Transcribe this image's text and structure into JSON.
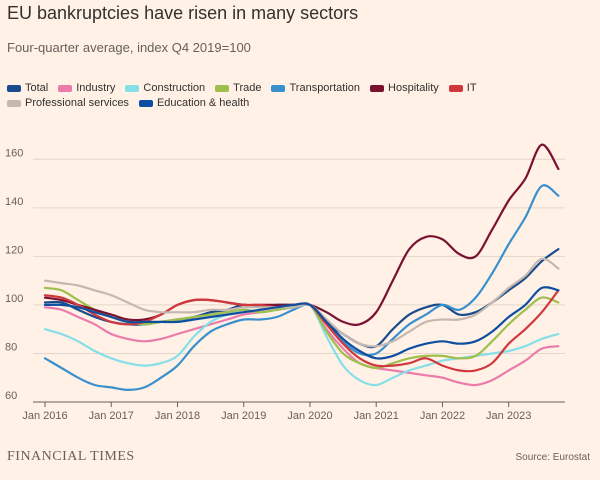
{
  "header": {
    "title": "EU bankruptcies have risen in many sectors",
    "subtitle": "Four-quarter average, index Q4 2019=100"
  },
  "footer": {
    "brand": "FINANCIAL TIMES",
    "source": "Source: Eurostat"
  },
  "chart_data": {
    "type": "line",
    "title": "EU bankruptcies have risen in many sectors",
    "subtitle": "Four-quarter average, index Q4 2019=100",
    "xlabel": "",
    "ylabel": "",
    "x": [
      2016.0,
      2016.25,
      2016.5,
      2016.75,
      2017.0,
      2017.25,
      2017.5,
      2017.75,
      2018.0,
      2018.25,
      2018.5,
      2018.75,
      2019.0,
      2019.25,
      2019.5,
      2019.75,
      2020.0,
      2020.25,
      2020.5,
      2020.75,
      2021.0,
      2021.25,
      2021.5,
      2021.75,
      2022.0,
      2022.25,
      2022.5,
      2022.75,
      2023.0,
      2023.25,
      2023.5,
      2023.75
    ],
    "xlim": [
      2016.0,
      2023.85
    ],
    "ylim": [
      60,
      170
    ],
    "x_ticks": [
      {
        "value": 2016,
        "label": "Jan 2016"
      },
      {
        "value": 2017,
        "label": "Jan 2017"
      },
      {
        "value": 2018,
        "label": "Jan 2018"
      },
      {
        "value": 2019,
        "label": "Jan 2019"
      },
      {
        "value": 2020,
        "label": "Jan 2020"
      },
      {
        "value": 2021,
        "label": "Jan 2021"
      },
      {
        "value": 2022,
        "label": "Jan 2022"
      },
      {
        "value": 2023,
        "label": "Jan 2023"
      }
    ],
    "y_ticks": [
      60,
      80,
      100,
      120,
      140,
      160
    ],
    "grid": "horizontal",
    "legend_position": "top-left",
    "series": [
      {
        "name": "Total",
        "color": "#1a4b8c",
        "values": [
          101,
          101,
          98,
          95,
          93,
          92,
          92,
          93,
          94,
          95,
          97,
          98,
          100,
          99,
          100,
          100,
          100,
          93,
          88,
          84,
          83,
          90,
          96,
          99,
          100,
          96,
          97,
          101,
          106,
          111,
          118,
          123
        ]
      },
      {
        "name": "Industry",
        "color": "#ea7bab",
        "values": [
          99,
          98,
          95,
          92,
          88,
          86,
          85,
          86,
          88,
          90,
          92,
          94,
          96,
          97,
          98,
          99,
          100,
          90,
          82,
          76,
          74,
          73,
          72,
          71,
          70,
          68,
          67,
          69,
          73,
          77,
          82,
          83
        ]
      },
      {
        "name": "Construction",
        "color": "#86dfe8",
        "values": [
          90,
          88,
          85,
          81,
          78,
          76,
          75,
          76,
          79,
          87,
          93,
          96,
          98,
          97,
          98,
          99,
          100,
          87,
          75,
          69,
          67,
          70,
          73,
          75,
          77,
          78,
          79,
          80,
          81,
          83,
          86,
          88
        ]
      },
      {
        "name": "Trade",
        "color": "#9ebf4b",
        "values": [
          107,
          106,
          102,
          98,
          95,
          93,
          92,
          93,
          94,
          95,
          96,
          97,
          98,
          97,
          98,
          99,
          100,
          89,
          80,
          76,
          74,
          76,
          78,
          79,
          79,
          78,
          79,
          85,
          92,
          98,
          103,
          101
        ]
      },
      {
        "name": "Transportation",
        "color": "#3a8fce",
        "values": [
          78,
          74,
          70,
          67,
          66,
          65,
          66,
          70,
          75,
          83,
          89,
          92,
          94,
          94,
          95,
          98,
          100,
          93,
          85,
          80,
          80,
          86,
          92,
          96,
          100,
          98,
          103,
          113,
          125,
          136,
          149,
          145
        ]
      },
      {
        "name": "Hospitality",
        "color": "#7a1131",
        "values": [
          103,
          102,
          100,
          98,
          96,
          94,
          94,
          96,
          100,
          102,
          102,
          101,
          100,
          100,
          100,
          100,
          100,
          97,
          93,
          92,
          97,
          110,
          123,
          128,
          127,
          121,
          120,
          131,
          143,
          152,
          166,
          156
        ]
      },
      {
        "name": "IT",
        "color": "#d1383e",
        "values": [
          104,
          103,
          100,
          96,
          93,
          92,
          93,
          96,
          100,
          102,
          102,
          101,
          100,
          100,
          99,
          100,
          100,
          92,
          84,
          78,
          75,
          75,
          76,
          78,
          75,
          73,
          73,
          76,
          84,
          90,
          97,
          106
        ]
      },
      {
        "name": "Professional services",
        "color": "#c4b8b0",
        "values": [
          110,
          109,
          108,
          106,
          104,
          101,
          98,
          97,
          97,
          97,
          98,
          98,
          99,
          99,
          99,
          99,
          100,
          94,
          88,
          84,
          83,
          85,
          89,
          93,
          94,
          94,
          96,
          101,
          107,
          112,
          119,
          115
        ]
      },
      {
        "name": "Education & health",
        "color": "#0e4ea0",
        "values": [
          100,
          100,
          99,
          97,
          95,
          93,
          93,
          93,
          93,
          94,
          95,
          96,
          97,
          98,
          99,
          100,
          100,
          93,
          86,
          81,
          78,
          79,
          82,
          84,
          85,
          84,
          85,
          89,
          95,
          100,
          107,
          106
        ]
      }
    ]
  }
}
